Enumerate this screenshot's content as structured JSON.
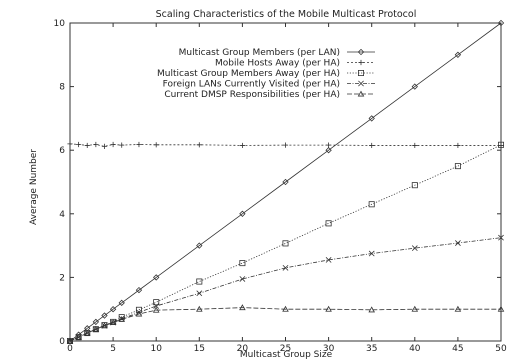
{
  "chart_data": {
    "type": "line",
    "title": "Scaling Characteristics of the Mobile Multicast Protocol",
    "xlabel": "Multicast Group Size",
    "ylabel": "Average Number",
    "xlim": [
      0,
      50
    ],
    "ylim": [
      0,
      10
    ],
    "xticks": [
      0,
      5,
      10,
      15,
      20,
      25,
      30,
      35,
      40,
      45,
      50
    ],
    "yticks": [
      0,
      2,
      4,
      6,
      8,
      10
    ],
    "grid": false,
    "legend_position": "top-right",
    "series": [
      {
        "name": "Multicast Group Members (per LAN)",
        "marker": "diamond",
        "dash": "solid",
        "x": [
          0,
          1,
          2,
          3,
          4,
          5,
          6,
          8,
          10,
          15,
          20,
          25,
          30,
          35,
          40,
          45,
          50
        ],
        "y": [
          0,
          0.2,
          0.4,
          0.6,
          0.8,
          1.0,
          1.2,
          1.6,
          2.0,
          3.0,
          4.0,
          5.0,
          6.0,
          7.0,
          8.0,
          9.0,
          10.0
        ]
      },
      {
        "name": "Mobile Hosts Away (per HA)",
        "marker": "plus",
        "dash": "dashed",
        "x": [
          0,
          1,
          2,
          3,
          4,
          5,
          6,
          8,
          10,
          15,
          20,
          25,
          30,
          35,
          40,
          45,
          50
        ],
        "y": [
          6.2,
          6.18,
          6.15,
          6.18,
          6.12,
          6.18,
          6.16,
          6.18,
          6.17,
          6.17,
          6.15,
          6.16,
          6.16,
          6.15,
          6.15,
          6.15,
          6.15
        ]
      },
      {
        "name": "Multicast Group Members Away (per HA)",
        "marker": "square",
        "dash": "dotted",
        "x": [
          0,
          1,
          2,
          3,
          4,
          5,
          6,
          8,
          10,
          15,
          20,
          25,
          30,
          35,
          40,
          45,
          50
        ],
        "y": [
          0,
          0.12,
          0.25,
          0.37,
          0.5,
          0.6,
          0.75,
          0.98,
          1.22,
          1.87,
          2.45,
          3.07,
          3.7,
          4.3,
          4.9,
          5.5,
          6.17
        ]
      },
      {
        "name": "Foreign LANs Currently Visited (per HA)",
        "marker": "cross",
        "dash": "dashdot",
        "x": [
          0,
          1,
          2,
          3,
          4,
          5,
          6,
          8,
          10,
          15,
          20,
          25,
          30,
          35,
          40,
          45,
          50
        ],
        "y": [
          0,
          0.12,
          0.25,
          0.37,
          0.48,
          0.58,
          0.7,
          0.9,
          1.1,
          1.5,
          1.95,
          2.3,
          2.55,
          2.75,
          2.92,
          3.08,
          3.25
        ]
      },
      {
        "name": "Current DMSP Responsibilities (per HA)",
        "marker": "triangle",
        "dash": "longdash",
        "x": [
          0,
          1,
          2,
          3,
          4,
          5,
          6,
          8,
          10,
          15,
          20,
          25,
          30,
          35,
          40,
          45,
          50
        ],
        "y": [
          0,
          0.12,
          0.25,
          0.37,
          0.48,
          0.58,
          0.68,
          0.85,
          0.97,
          1.0,
          1.05,
          1.0,
          1.0,
          0.98,
          1.0,
          1.0,
          1.0
        ]
      }
    ]
  }
}
